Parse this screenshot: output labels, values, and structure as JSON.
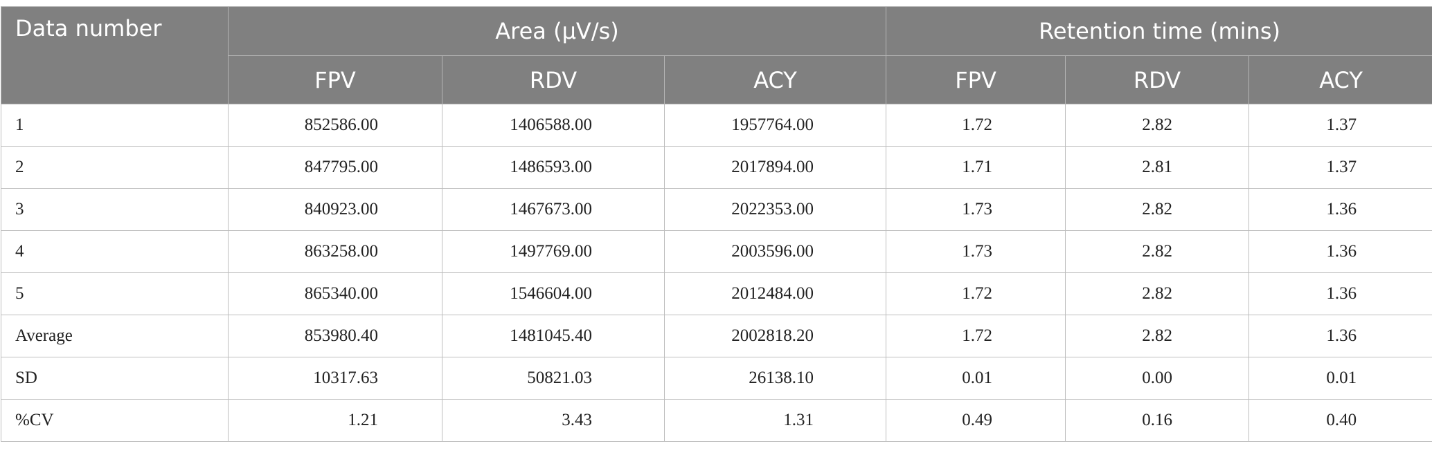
{
  "table": {
    "header_groups": [
      "Data number",
      "Area (μV/s)",
      "Retention time (mins)"
    ],
    "sub_headers": [
      "FPV",
      "RDV",
      "ACY",
      "FPV",
      "RDV",
      "ACY"
    ],
    "rows": [
      [
        "1",
        "852586.00",
        "1406588.00",
        "1957764.00",
        "1.72",
        "2.82",
        "1.37"
      ],
      [
        "2",
        "847795.00",
        "1486593.00",
        "2017894.00",
        "1.71",
        "2.81",
        "1.37"
      ],
      [
        "3",
        "840923.00",
        "1467673.00",
        "2022353.00",
        "1.73",
        "2.82",
        "1.36"
      ],
      [
        "4",
        "863258.00",
        "1497769.00",
        "2003596.00",
        "1.73",
        "2.82",
        "1.36"
      ],
      [
        "5",
        "865340.00",
        "1546604.00",
        "2012484.00",
        "1.72",
        "2.82",
        "1.36"
      ],
      [
        "Average",
        "853980.40",
        "1481045.40",
        "2002818.20",
        "1.72",
        "2.82",
        "1.36"
      ],
      [
        "SD",
        "10317.63",
        "50821.03",
        "26138.10",
        "0.01",
        "0.00",
        "0.01"
      ],
      [
        "%CV",
        "1.21",
        "3.43",
        "1.31",
        "0.49",
        "0.16",
        "0.40"
      ]
    ]
  }
}
